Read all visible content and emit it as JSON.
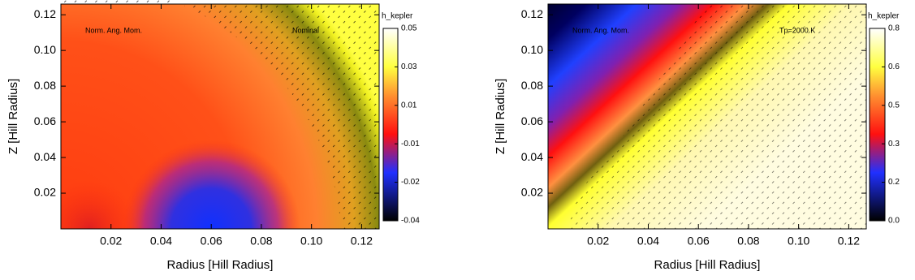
{
  "chart_data": [
    {
      "type": "heatmap",
      "xlabel": "Radius [Hill Radius]",
      "ylabel": "Z [Hill Radius]",
      "xlim": [
        0,
        0.127
      ],
      "ylim": [
        0,
        0.126
      ],
      "xticks": [
        0.02,
        0.04,
        0.06,
        0.08,
        {
          "value": 0.1,
          "label": "0.10"
        },
        0.12
      ],
      "yticks": [
        0.02,
        0.04,
        0.06,
        0.08,
        {
          "value": 0.1,
          "label": "0.10"
        },
        0.12
      ],
      "annotations": [
        "Norm. Ang. Mom.",
        "Nominal"
      ],
      "colorbar": {
        "label": "h_kepler",
        "ticks": [
          0.05,
          0.03,
          0.01,
          -0.01,
          -0.02,
          -0.04
        ]
      }
    },
    {
      "type": "heatmap",
      "xlabel": "Radius [Hill Radius]",
      "ylabel": "Z [Hill Radius]",
      "xlim": [
        0,
        0.127
      ],
      "ylim": [
        0,
        0.126
      ],
      "xticks": [
        0.02,
        0.04,
        0.06,
        0.08,
        {
          "value": 0.1,
          "label": "0.10"
        },
        0.12
      ],
      "yticks": [
        0.02,
        0.04,
        0.06,
        0.08,
        {
          "value": 0.1,
          "label": "0.10"
        },
        0.12
      ],
      "annotations": [
        "Norm. Ang. Mom.",
        "Tp=2000 K"
      ],
      "colorbar": {
        "label": "h_kepler",
        "ticks": [
          0.8,
          0.6,
          0.5,
          0.3,
          0.2,
          {
            "value": 0,
            "label": "0.0"
          }
        ]
      }
    }
  ]
}
